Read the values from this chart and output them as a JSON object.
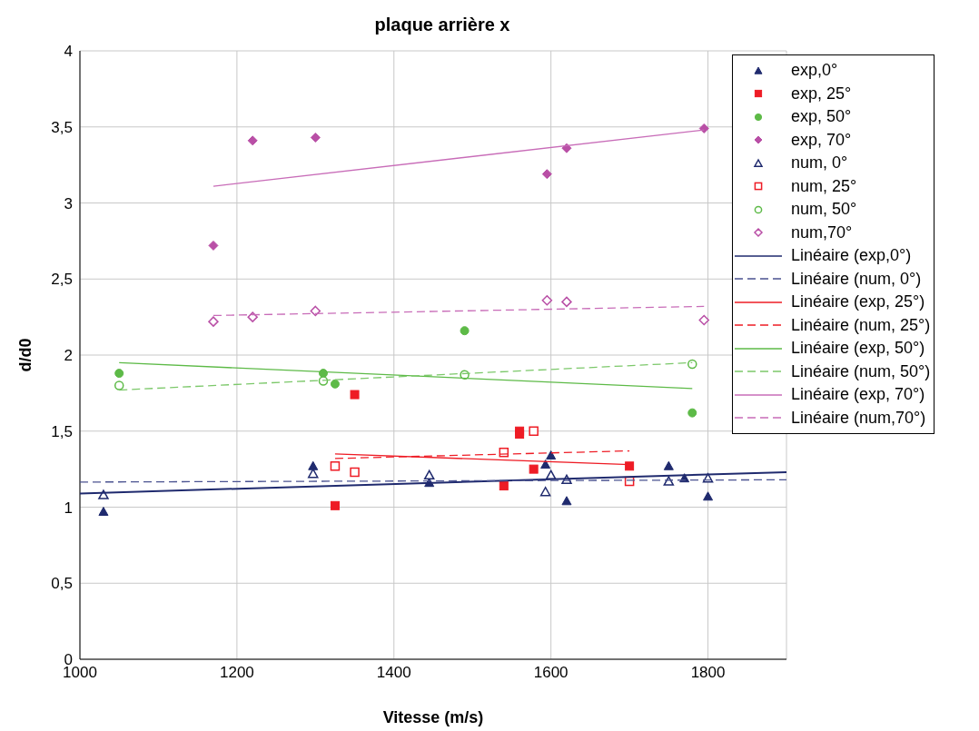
{
  "chart_data": {
    "type": "scatter",
    "title": "plaque arrière x",
    "xlabel": "Vitesse (m/s)",
    "ylabel": "d/d0",
    "xlim": [
      1000,
      1900
    ],
    "xticks": [
      1000,
      1200,
      1400,
      1600,
      1800
    ],
    "ylim": [
      0,
      4
    ],
    "yticks": [
      0,
      {
        "value": 0.5,
        "label": "0,5"
      },
      1,
      {
        "value": 1.5,
        "label": "1,5"
      },
      2,
      {
        "value": 2.5,
        "label": "2,5"
      },
      3,
      {
        "value": 3.5,
        "label": "3,5"
      },
      4
    ],
    "grid": true,
    "legend": "top right",
    "series": [
      {
        "name": "exp,0°",
        "color": "#1f2a6e",
        "marker": "triangle",
        "x": [
          1030,
          1297,
          1445,
          1593,
          1600,
          1620,
          1750,
          1770,
          1800
        ],
        "values": [
          0.97,
          1.27,
          1.16,
          1.28,
          1.34,
          1.04,
          1.27,
          1.19,
          1.07
        ]
      },
      {
        "name": "exp, 25°",
        "color": "#ee1c25",
        "marker": "square",
        "x": [
          1325,
          1350,
          1540,
          1560,
          1560,
          1578,
          1700
        ],
        "values": [
          1.01,
          1.74,
          1.14,
          1.48,
          1.5,
          1.25,
          1.27
        ]
      },
      {
        "name": "exp, 50°",
        "color": "#5dba47",
        "marker": "circle",
        "x": [
          1050,
          1310,
          1325,
          1490,
          1780
        ],
        "values": [
          1.88,
          1.88,
          1.81,
          2.16,
          1.62
        ]
      },
      {
        "name": "exp, 70°",
        "color": "#b94fa6",
        "marker": "diamond",
        "x": [
          1170,
          1220,
          1300,
          1595,
          1620,
          1795
        ],
        "values": [
          2.72,
          3.41,
          3.43,
          3.19,
          3.36,
          3.49
        ]
      },
      {
        "name": "num, 0°",
        "color": "#1f2a6e",
        "marker": "triangle",
        "x": [
          1030,
          1297,
          1445,
          1593,
          1600,
          1620,
          1750,
          1800
        ],
        "values": [
          1.08,
          1.22,
          1.21,
          1.1,
          1.21,
          1.18,
          1.17,
          1.19
        ]
      },
      {
        "name": "num, 25°",
        "color": "#ee1c25",
        "marker": "square",
        "x": [
          1325,
          1350,
          1540,
          1578,
          1700
        ],
        "values": [
          1.27,
          1.23,
          1.36,
          1.5,
          1.17
        ]
      },
      {
        "name": "num, 50°",
        "color": "#5dba47",
        "marker": "circle",
        "x": [
          1050,
          1310,
          1490,
          1780
        ],
        "values": [
          1.8,
          1.83,
          1.87,
          1.94
        ]
      },
      {
        "name": "num,70°",
        "color": "#b94fa6",
        "marker": "diamond",
        "x": [
          1170,
          1220,
          1300,
          1595,
          1620,
          1795
        ],
        "values": [
          2.22,
          2.25,
          2.29,
          2.36,
          2.35,
          2.23
        ]
      },
      {
        "name": "Linéaire (exp,0°)",
        "type": "line",
        "color": "#1f2a6e",
        "line_style": "solid",
        "x": [
          1000,
          1900
        ],
        "values": [
          1.09,
          1.23
        ]
      },
      {
        "name": "Linéaire (num, 0°)",
        "type": "line",
        "color": "#4a5290",
        "line_style": "dashed",
        "x": [
          1000,
          1900
        ],
        "values": [
          1.165,
          1.18
        ]
      },
      {
        "name": "Linéaire (exp, 25°)",
        "type": "line",
        "color": "#ee1c25",
        "line_style": "solid",
        "x": [
          1325,
          1700
        ],
        "values": [
          1.35,
          1.28
        ]
      },
      {
        "name": "Linéaire (num, 25°)",
        "type": "line",
        "color": "#ee1c25",
        "line_style": "dashed",
        "x": [
          1325,
          1700
        ],
        "values": [
          1.32,
          1.37
        ]
      },
      {
        "name": "Linéaire (exp, 50°)",
        "type": "line",
        "color": "#5dba47",
        "line_style": "solid",
        "x": [
          1050,
          1780
        ],
        "values": [
          1.95,
          1.78
        ]
      },
      {
        "name": "Linéaire (num, 50°)",
        "type": "line",
        "color": "#7cc86a",
        "line_style": "dashed",
        "x": [
          1050,
          1780
        ],
        "values": [
          1.77,
          1.95
        ]
      },
      {
        "name": "Linéaire (exp, 70°)",
        "type": "line",
        "color": "#c86cb8",
        "line_style": "solid",
        "x": [
          1170,
          1795
        ],
        "values": [
          3.11,
          3.48
        ]
      },
      {
        "name": "Linéaire (num,70°)",
        "type": "line",
        "color": "#c86cb8",
        "line_style": "dashed",
        "x": [
          1170,
          1795
        ],
        "values": [
          2.26,
          2.32
        ]
      }
    ]
  }
}
